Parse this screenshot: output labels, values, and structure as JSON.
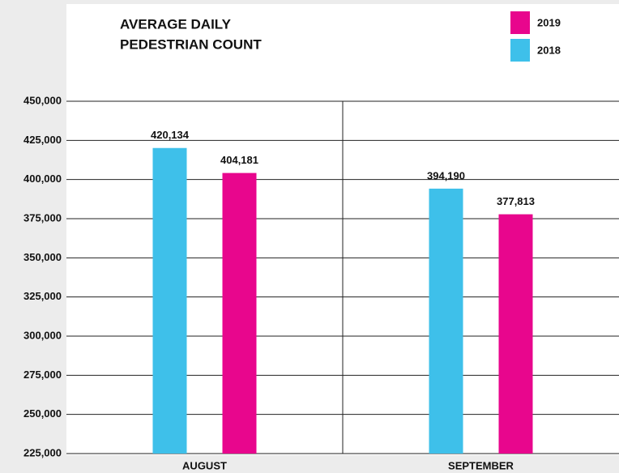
{
  "chart_data": {
    "type": "bar",
    "title": [
      "AVERAGE DAILY",
      "PEDESTRIAN COUNT"
    ],
    "categories": [
      "AUGUST",
      "SEPTEMBER"
    ],
    "series": [
      {
        "name": "2018",
        "color": "#3ec0ea",
        "values": [
          420134,
          394190
        ],
        "value_labels": [
          "420,134",
          "394,190"
        ]
      },
      {
        "name": "2019",
        "color": "#e8068d",
        "values": [
          404181,
          377813
        ],
        "value_labels": [
          "404,181",
          "377,813"
        ]
      }
    ],
    "ylim": [
      225000,
      450000
    ],
    "yticks": [
      {
        "value": 225000,
        "label": "225,000"
      },
      {
        "value": 250000,
        "label": "250,000"
      },
      {
        "value": 275000,
        "label": "275,000"
      },
      {
        "value": 300000,
        "label": "300,000"
      },
      {
        "value": 325000,
        "label": "325,000"
      },
      {
        "value": 350000,
        "label": "350,000"
      },
      {
        "value": 375000,
        "label": "375,000"
      },
      {
        "value": 400000,
        "label": "400,000"
      },
      {
        "value": 425000,
        "label": "425,000"
      },
      {
        "value": 450000,
        "label": "450,000"
      }
    ],
    "grid": true
  }
}
